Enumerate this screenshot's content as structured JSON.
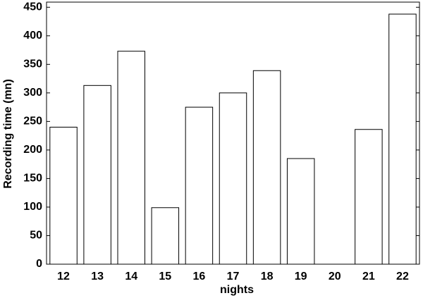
{
  "chart_data": {
    "type": "bar",
    "x_label": "nights",
    "y_label": "Recording time (mn)",
    "categories": [
      "12",
      "13",
      "14",
      "15",
      "16",
      "17",
      "18",
      "19",
      "20",
      "21",
      "22"
    ],
    "values": [
      240,
      313,
      373,
      99,
      275,
      300,
      339,
      185,
      0,
      236,
      438
    ],
    "color": "#ffffff",
    "ylim": [
      0,
      459
    ],
    "yticks": [
      0,
      50,
      100,
      150,
      200,
      250,
      300,
      350,
      400,
      450
    ]
  }
}
